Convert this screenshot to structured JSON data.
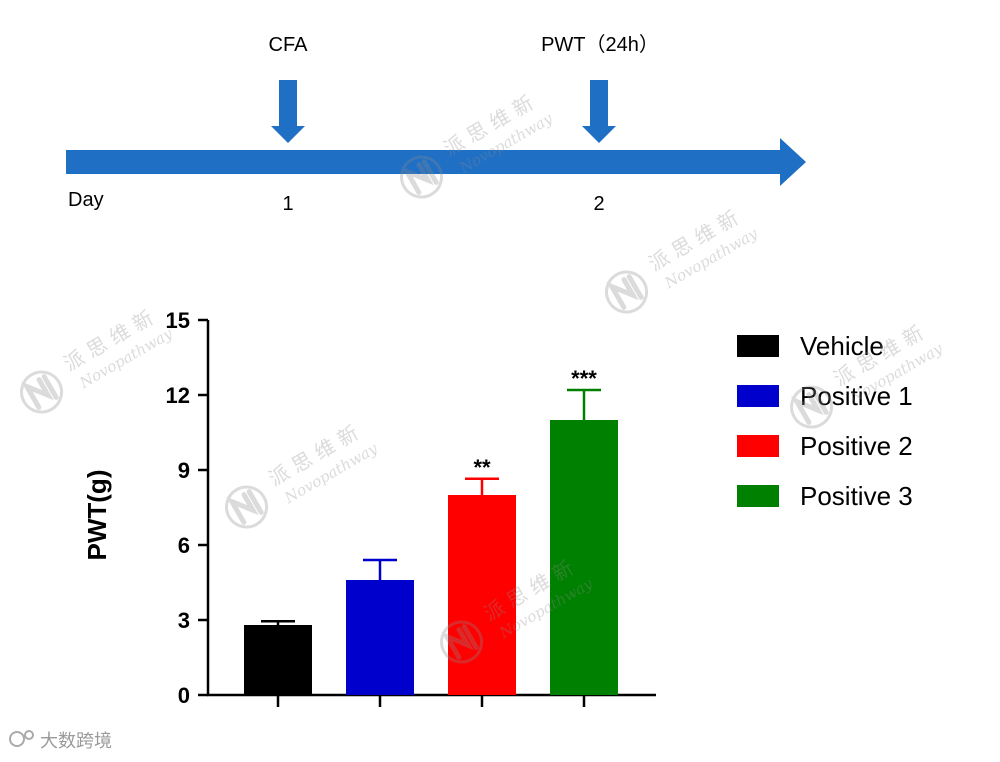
{
  "timeline": {
    "events": [
      {
        "label": "CFA",
        "day": "1"
      },
      {
        "label": "PWT（24h）",
        "day": "2"
      }
    ],
    "axis_label": "Day",
    "color": "#1f6fc5"
  },
  "chart_data": {
    "type": "bar",
    "title": "",
    "xlabel": "",
    "ylabel": "PWT(g)",
    "ylim": [
      0,
      15
    ],
    "yticks": [
      0,
      3,
      6,
      9,
      12,
      15
    ],
    "categories": [
      "Vehicle",
      "Positive 1",
      "Positive 2",
      "Positive 3"
    ],
    "values": [
      2.8,
      4.6,
      8.0,
      11.0
    ],
    "errors": [
      0.15,
      0.8,
      0.65,
      1.2
    ],
    "significance": [
      "",
      "",
      "**",
      "***"
    ],
    "colors": [
      "#000000",
      "#0000cc",
      "#ff0000",
      "#008000"
    ],
    "grid": false,
    "legend": {
      "position": "right",
      "entries": [
        "Vehicle",
        "Positive 1",
        "Positive 2",
        "Positive 3"
      ]
    }
  },
  "watermark": {
    "cn": "派 思 维 新",
    "en": "Novopathway"
  },
  "footer": {
    "source": "大数跨境"
  }
}
